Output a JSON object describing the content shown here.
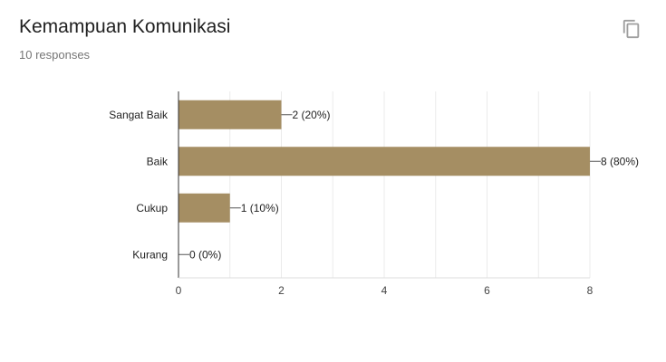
{
  "header": {
    "title": "Kemampuan Komunikasi",
    "responses": "10 responses"
  },
  "icons": {
    "copy": "copy-icon"
  },
  "colors": {
    "bar": "#a58e63",
    "grid": "#ebebeb",
    "axis": "#333333"
  },
  "chart_data": {
    "type": "bar",
    "orientation": "horizontal",
    "categories": [
      "Sangat Baik",
      "Baik",
      "Cukup",
      "Kurang"
    ],
    "values": [
      2,
      8,
      1,
      0
    ],
    "data_labels": [
      "2 (20%)",
      "8 (80%)",
      "1 (10%)",
      "0 (0%)"
    ],
    "x_ticks": [
      0,
      2,
      4,
      6,
      8
    ],
    "xlim": [
      0,
      8
    ],
    "grid": true,
    "legend": "none"
  }
}
